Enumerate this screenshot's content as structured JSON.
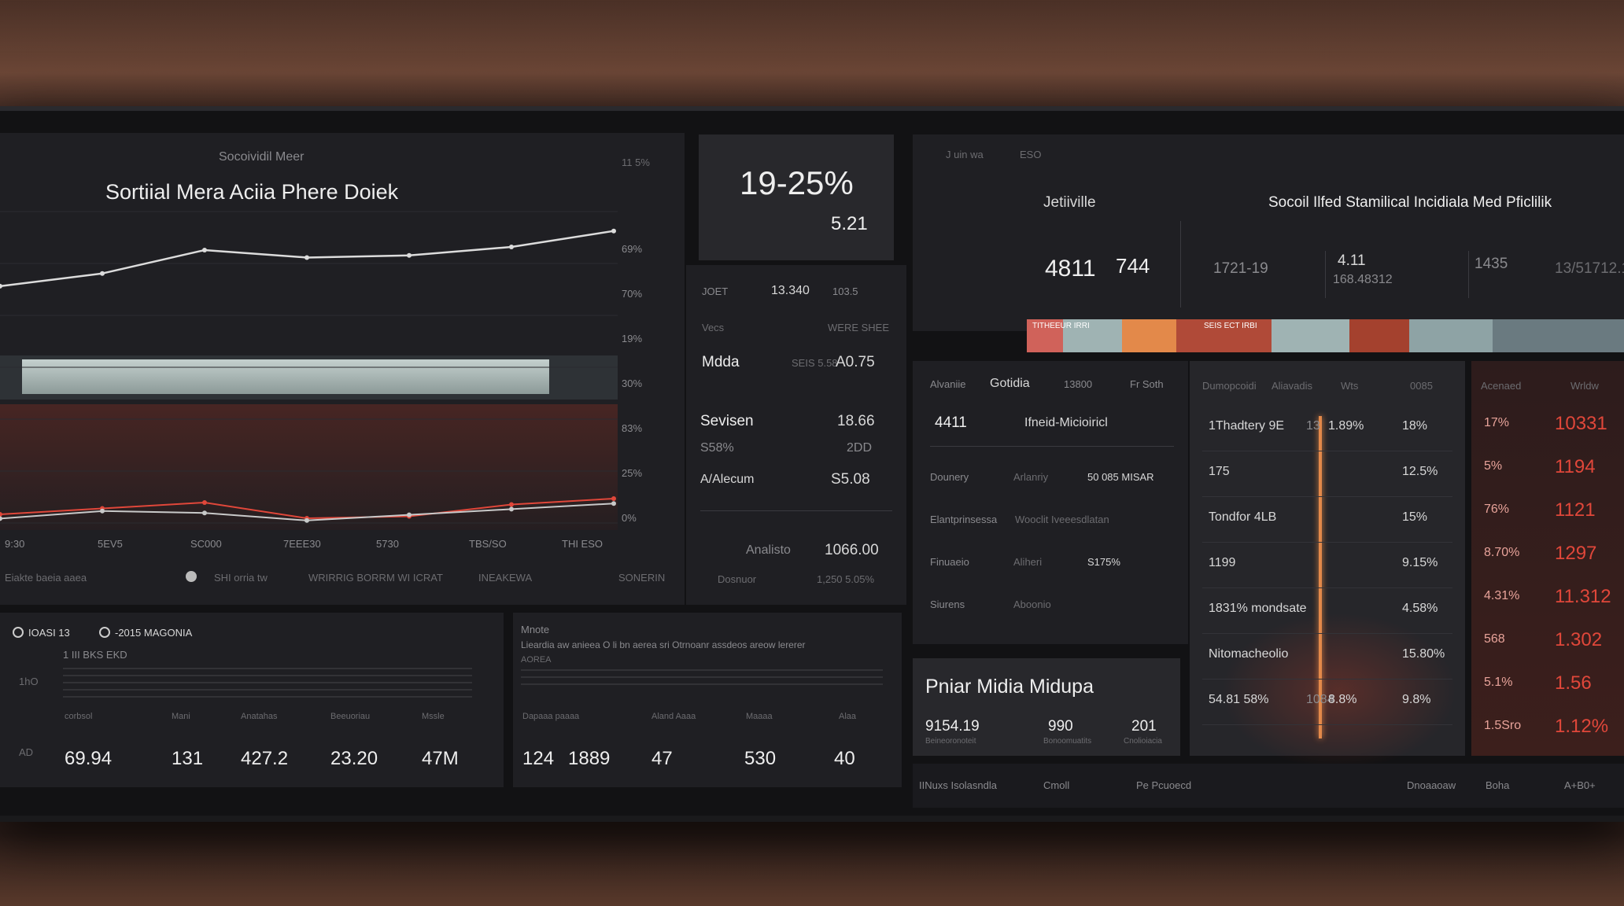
{
  "colors": {
    "accent_red": "#e0473a",
    "accent_orange": "#e3894a",
    "accent_teal": "#9fb3b3",
    "line_white": "#dcdcdc",
    "panel": "#1f1f23"
  },
  "left_chart": {
    "subtitle": "Socoividil Meer",
    "title": "Sortiial Mera Aciia Phere Doiek",
    "top_pct": "11 5%",
    "y_ticks": [
      "69%",
      "70%",
      "19%",
      "30%",
      "83%",
      "25%",
      "0%"
    ],
    "x_ticks": [
      "9:30",
      "5EV5",
      "SC000",
      "7EEE30",
      "5730",
      "TBS/SO",
      "THI ESO"
    ],
    "legend": {
      "left": "Eiakte baeia aaea",
      "middle": "SHI orria tw",
      "center": "WRIRRIG BORRM WI ICRAT",
      "right_a": "INEAKEWA",
      "right_b": "SONERIN"
    }
  },
  "chart_data": {
    "type": "line",
    "x": [
      "9:30",
      "5EV5",
      "SC000",
      "7EEE30",
      "5730",
      "TBS/SO",
      "THI ESO"
    ],
    "series": [
      {
        "values": [
          26,
          38,
          60,
          53,
          55,
          63,
          78
        ]
      },
      {
        "values": [
          12,
          18,
          24,
          8,
          10,
          22,
          28
        ]
      },
      {
        "values": [
          8,
          16,
          14,
          6,
          12,
          18,
          24
        ]
      }
    ]
  },
  "kpi": {
    "big": "19-25%",
    "sub": "5.21",
    "row1": [
      "JOET",
      "13.340",
      "103.5"
    ],
    "row2_a": "Vecs",
    "row2_b": "WERE SHEE",
    "items": [
      {
        "label": "Mdda",
        "value": "A0.75",
        "note": "SEIS 5.58"
      },
      {
        "label": "Sevisen",
        "value": "18.66"
      },
      {
        "label": "S58%",
        "value": "2DD"
      },
      {
        "label": "A/Alecum",
        "value": "S5.08"
      }
    ],
    "footer": [
      "Analisto",
      "1066.00",
      "Dosnuor",
      "1,250 5.05%"
    ]
  },
  "right_header": {
    "small_a": "J uin wa",
    "small_b": "ESO",
    "name": "Jetiiville",
    "title": "Socoil Ilfed Stamilical Incidiala Med Pficlilik",
    "stats": [
      "4811",
      "744",
      "1721-19",
      "4.11",
      "168.48312",
      "1435",
      "13/51712.1"
    ]
  },
  "segments": [
    {
      "label": "TITHEEUR IRRI",
      "color": "#d0625a",
      "width": 0.06
    },
    {
      "label": "",
      "color": "#9fb3b3",
      "width": 0.1
    },
    {
      "label": "",
      "color": "#e3894a",
      "width": 0.09
    },
    {
      "label": "SEIS ECT IRBI",
      "color": "#b04a38",
      "width": 0.16
    },
    {
      "label": "",
      "color": "#9fb3b3",
      "width": 0.13
    },
    {
      "label": "",
      "color": "#a4412e",
      "width": 0.1
    },
    {
      "label": "",
      "color": "#8ea3a5",
      "width": 0.14
    },
    {
      "label": "",
      "color": "#6a7a80",
      "width": 0.22
    }
  ],
  "mid_table": {
    "headers": [
      "Alvaniie",
      "Gotidia",
      "13800",
      "Fr Soth"
    ],
    "highlight_value": "4411",
    "highlight_label": "Ifneid-Micioiricl",
    "rows": [
      [
        "Dounery",
        "Arlanriy",
        "50 085 MISAR"
      ],
      [
        "Elantprinsessa",
        "Wooclit Iveeesdlatan",
        ""
      ],
      [
        "Finuaeio",
        "Aliheri",
        "S175%"
      ],
      [
        "Siurens",
        "Aboonio",
        ""
      ]
    ]
  },
  "popular": {
    "title": "Pniar Midia Midupa",
    "values": [
      "9154.19",
      "990",
      "201"
    ],
    "captions": [
      "Beineoronoteit",
      "Bonoomuatits",
      "Cnolioiacia"
    ]
  },
  "grid_table": {
    "headers": [
      "Dumopcoidi",
      "Aliavadis",
      "Wts",
      "0085"
    ],
    "rows": [
      [
        "1Thadtery 9E",
        "13",
        "1.89%",
        "18%"
      ],
      [
        "175",
        "",
        "",
        "12.5%"
      ],
      [
        "Tondfor 4LB",
        "",
        "",
        "15%"
      ],
      [
        "1199",
        "",
        "",
        "9.15%"
      ],
      [
        "1831% mondsate",
        "",
        "",
        "4.58%"
      ],
      [
        "Nitomacheolio",
        "",
        "",
        "15.80%"
      ],
      [
        "54.81 58%",
        "1084",
        "8.8%",
        "9.8%"
      ]
    ]
  },
  "red_table": {
    "headers": [
      "Acenaed",
      "Wrldw"
    ],
    "rows": [
      [
        "17%",
        "10331"
      ],
      [
        "5%",
        "1194"
      ],
      [
        "76%",
        "1121"
      ],
      [
        "8.70%",
        "1297"
      ],
      [
        "4.31%",
        "11.312"
      ],
      [
        "568",
        "1.302"
      ],
      [
        "5.1%",
        "1.56"
      ],
      [
        "1.5Sro",
        "1.12%"
      ]
    ]
  },
  "bottom_left": {
    "label_a": "IOASI 13",
    "label_b": "-2015 MAGONIA",
    "header": "1 III BKS EKD",
    "side": [
      "1hO",
      "AD"
    ],
    "stats": [
      "69.94",
      "131",
      "427.2",
      "23.20",
      "47M"
    ],
    "stat_headers": [
      "corbsol",
      "Mani",
      "Anatahas",
      "Beeuoriau",
      "Mssle"
    ]
  },
  "bottom_mid": {
    "title": "Mnote",
    "sub": "Lieardia aw anieea O li bn aerea sri Otrnoanr assdeos areow lererer",
    "sub2": "AOREA",
    "stats": [
      "124",
      "1889",
      "47",
      "530",
      "40"
    ],
    "stat_headers": [
      "Dapaaa paaaa",
      "Aland Aaaa",
      "Maaaa",
      "Alaa"
    ]
  },
  "footer": [
    "IINuxs Isolasndla",
    "Cmoll",
    "Pe Pcuoecd",
    "Dnoaaoaw",
    "Boha",
    "A+B0+"
  ]
}
